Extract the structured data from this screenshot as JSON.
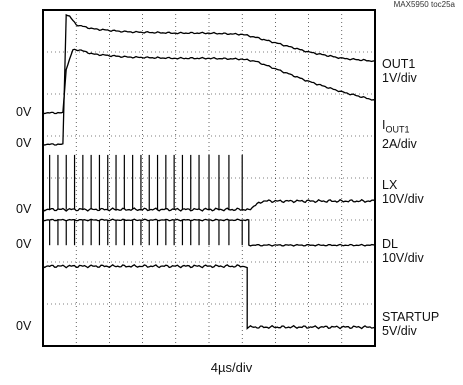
{
  "figure_id": "MAX5950 toc25a",
  "timebase": "4µs/div",
  "chart_data": {
    "type": "line",
    "title": "",
    "xlabel": "4µs/div",
    "ylabel": "",
    "grid": true,
    "divisions": {
      "x": 10,
      "y": 8
    },
    "x_unit": "div",
    "xlim": [
      0,
      10
    ],
    "ylim": [
      0,
      8
    ],
    "channels": [
      {
        "id": "out1",
        "label_lines": [
          "OUT1",
          "1V/div"
        ],
        "zero_label": "0V",
        "zero_div": 4.8,
        "points": [
          [
            0,
            4.8
          ],
          [
            0.6,
            4.8
          ],
          [
            0.7,
            7.9
          ],
          [
            0.8,
            7.85
          ],
          [
            1.0,
            7.65
          ],
          [
            1.5,
            7.55
          ],
          [
            2.5,
            7.48
          ],
          [
            4,
            7.45
          ],
          [
            5,
            7.45
          ],
          [
            6,
            7.42
          ],
          [
            6.4,
            7.35
          ],
          [
            7,
            7.22
          ],
          [
            8,
            7.0
          ],
          [
            9,
            6.85
          ],
          [
            10,
            6.78
          ]
        ]
      },
      {
        "id": "iout1",
        "label_lines": [
          "I",
          "OUT1",
          "2A/div"
        ],
        "zero_label": "0V",
        "zero_div": 5.55,
        "points": [
          [
            0,
            5.55
          ],
          [
            0.6,
            5.55
          ],
          [
            0.7,
            6.6
          ],
          [
            0.9,
            7.05
          ],
          [
            1.1,
            7.05
          ],
          [
            1.5,
            6.95
          ],
          [
            2.5,
            6.88
          ],
          [
            4,
            6.85
          ],
          [
            5,
            6.85
          ],
          [
            6,
            6.83
          ],
          [
            6.4,
            6.78
          ],
          [
            7,
            6.6
          ],
          [
            8,
            6.3
          ],
          [
            9,
            6.05
          ],
          [
            10,
            5.85
          ]
        ]
      },
      {
        "id": "lx",
        "label_lines": [
          "LX",
          "10V/div"
        ],
        "zero_label": "0V",
        "zero_div": 3.25,
        "points": [
          [
            0,
            3.25
          ],
          [
            6.2,
            3.25
          ],
          [
            6.6,
            3.45
          ],
          [
            10,
            3.45
          ]
        ],
        "pulse_times": [
          0.2,
          0.45,
          0.7,
          0.95,
          1.2,
          1.45,
          1.7,
          1.95,
          2.2,
          2.45,
          2.7,
          2.95,
          3.2,
          3.45,
          3.7,
          3.95,
          4.2,
          4.45,
          4.7,
          5.0,
          5.3,
          5.6,
          6.0
        ],
        "pulse_height_div": 1.3
      },
      {
        "id": "dl",
        "label_lines": [
          "DL",
          "10V/div"
        ],
        "zero_label": "0V",
        "zero_div": 2.4,
        "points": [
          [
            0,
            3.0
          ],
          [
            6.2,
            3.0
          ],
          [
            6.2,
            2.4
          ],
          [
            10,
            2.4
          ]
        ],
        "pulse_times": [
          0.2,
          0.45,
          0.7,
          0.95,
          1.2,
          1.45,
          1.7,
          1.95,
          2.2,
          2.45,
          2.7,
          2.95,
          3.2,
          3.45,
          3.7,
          3.95,
          4.2,
          4.45,
          4.7,
          5.0,
          5.3,
          5.6,
          6.0
        ],
        "pulse_depth_div": 0.6
      },
      {
        "id": "startup",
        "label_lines": [
          "STARTUP",
          "5V/div"
        ],
        "zero_label": "0V",
        "zero_div": 0.45,
        "points": [
          [
            0,
            1.9
          ],
          [
            6.15,
            1.9
          ],
          [
            6.15,
            0.45
          ],
          [
            10,
            0.45
          ]
        ]
      }
    ]
  }
}
